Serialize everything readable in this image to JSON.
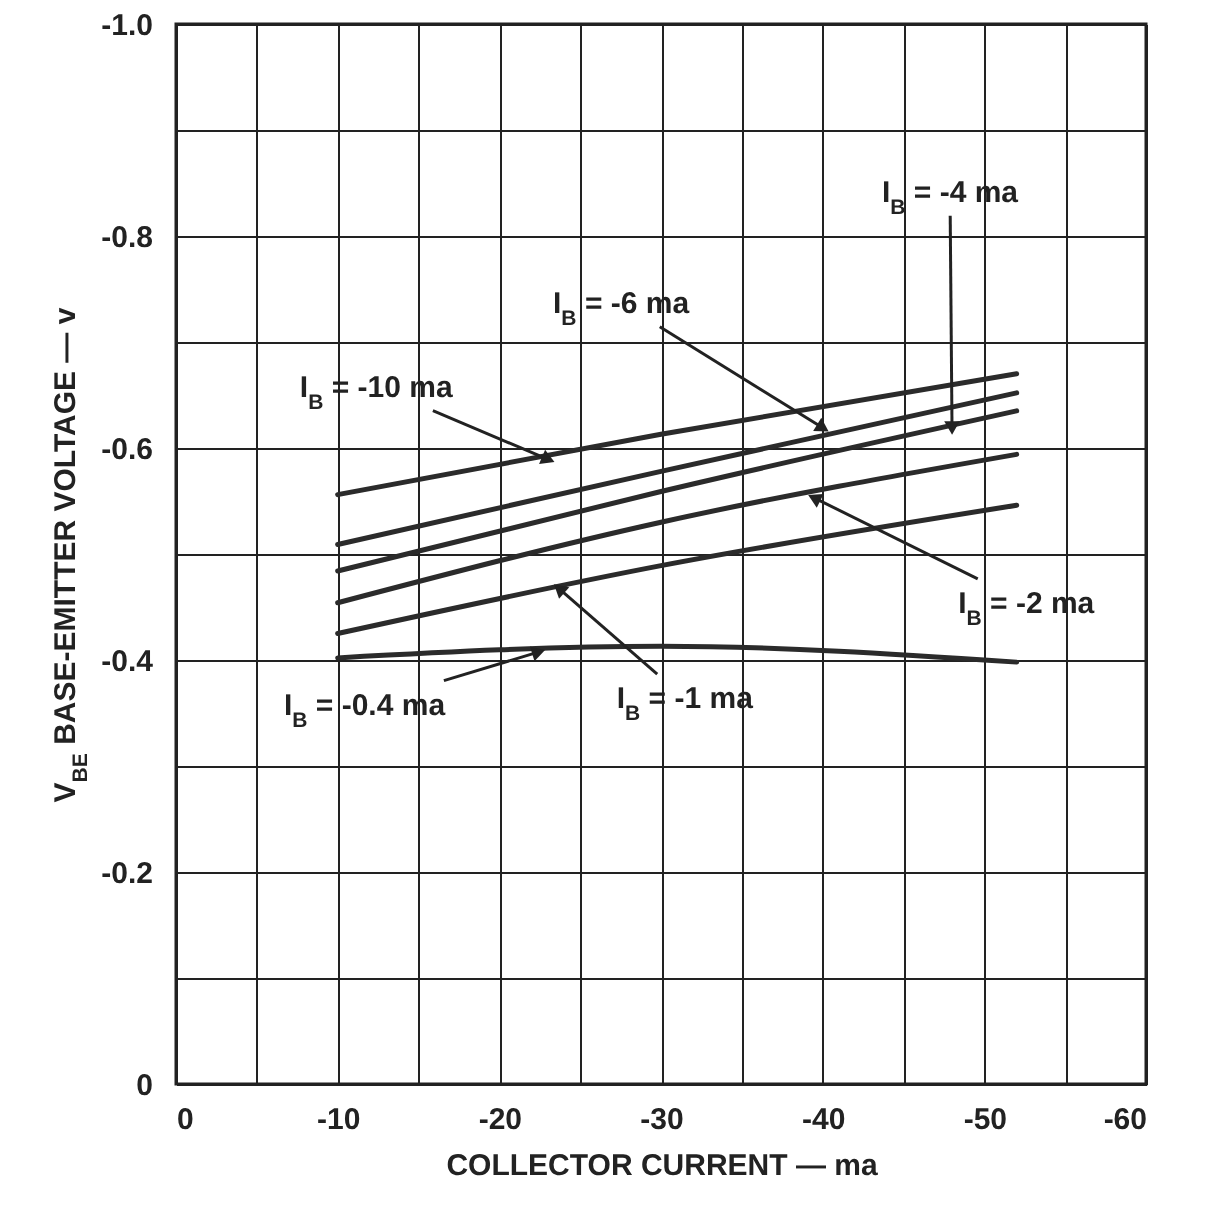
{
  "chart_data": {
    "type": "line",
    "xlabel": "COLLECTOR CURRENT — ma",
    "ylabel": "V$_{BE}$ BASE-EMITTER VOLTAGE — v",
    "x": [
      -10,
      -30,
      -52
    ],
    "series": [
      {
        "color": "#2b2b2b",
        "values": [
          -0.556,
          -0.613,
          -0.67
        ]
      },
      {
        "color": "#2b2b2b",
        "values": [
          -0.509,
          -0.578,
          -0.652
        ]
      },
      {
        "color": "#2b2b2b",
        "values": [
          -0.484,
          -0.559,
          -0.635
        ]
      },
      {
        "color": "#2b2b2b",
        "values": [
          -0.454,
          -0.53,
          -0.594
        ]
      },
      {
        "color": "#2b2b2b",
        "values": [
          -0.425,
          -0.489,
          -0.546
        ]
      },
      {
        "color": "#2b2b2b",
        "values": [
          -0.402,
          -0.413,
          -0.398
        ]
      }
    ],
    "xlim": [
      0,
      -60
    ],
    "ylim": [
      0,
      -1.0
    ],
    "xticks": [
      0,
      {
        "value": -5,
        "label": null
      },
      -10,
      {
        "value": -15,
        "label": null
      },
      -20,
      {
        "value": -25,
        "label": null
      },
      -30,
      {
        "value": -35,
        "label": null
      },
      -40,
      {
        "value": -45,
        "label": null
      },
      -50,
      {
        "value": -55,
        "label": null
      },
      -60
    ],
    "yticks": [
      0,
      {
        "value": -0.1,
        "label": null
      },
      -0.2,
      {
        "value": -0.3,
        "label": null
      },
      -0.4,
      {
        "value": -0.5,
        "label": null
      },
      -0.6,
      {
        "value": -0.7,
        "label": null
      },
      -0.8,
      {
        "value": -0.9,
        "label": null
      },
      {
        "value": -1.0,
        "label": "-1.0"
      }
    ],
    "grid": true,
    "line_style": "solid",
    "annotations": [
      {
        "text": "I$_{B}$ =  -10 ma",
        "x": -22.9,
        "y": -0.59
      },
      {
        "text": "I$_{B}$ =  -6 ma",
        "x": -39.9,
        "y": -0.62
      },
      {
        "text": "I$_{B}$ =  -4 ma",
        "x": -48,
        "y": -0.621
      },
      {
        "text": "I$_{B}$ =  -2 ma",
        "x": -39.6,
        "y": -0.552
      },
      {
        "text": "I$_{B}$ =  -1 ma",
        "x": -23.8,
        "y": -0.466
      },
      {
        "text": "I$_{B}$ =  -0.4 ma",
        "x": -22.3,
        "y": -0.407
      }
    ]
  }
}
